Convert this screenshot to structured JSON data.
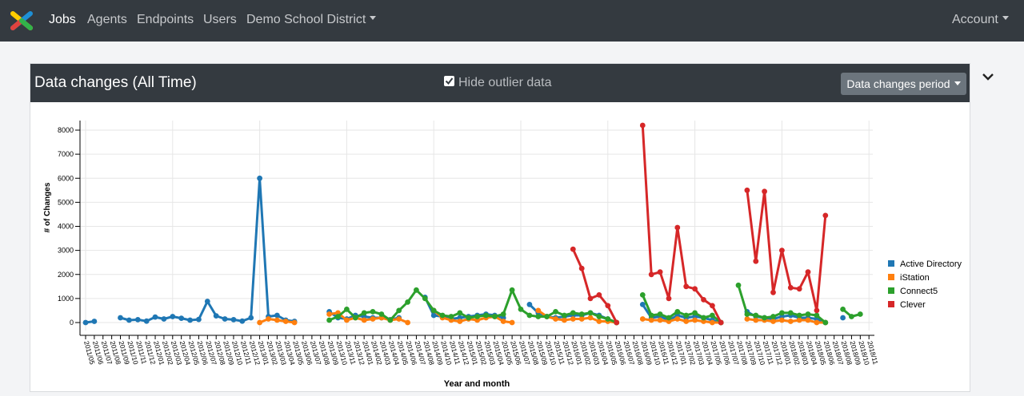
{
  "nav": {
    "jobs": "Jobs",
    "agents": "Agents",
    "endpoints": "Endpoints",
    "users": "Users",
    "district": "Demo School District",
    "account": "Account"
  },
  "card": {
    "title": "Data changes (All Time)",
    "outlier_label": "Hide outlier data",
    "outlier_checked": true,
    "period_button": "Data changes period"
  },
  "colors": {
    "navbar": "#343a40",
    "active_directory": "#1f77b4",
    "istation": "#ff7f0e",
    "connect5": "#2ca02c",
    "clever": "#d62728"
  },
  "icons": {
    "logo": "colored-x-logo",
    "collapse": "chevron-down-icon",
    "checkbox": "check-icon"
  },
  "chart_data": {
    "type": "line",
    "xlabel": "Year and month",
    "ylabel": "# of Changes",
    "ylim": [
      0,
      8000
    ],
    "yticks": [
      0,
      1000,
      2000,
      3000,
      4000,
      5000,
      6000,
      7000,
      8000
    ],
    "grid": true,
    "legend_position": "right",
    "categories": [
      "2011/05",
      "2011/06",
      "2011/07",
      "2011/08",
      "2011/09",
      "2011/10",
      "2011/11",
      "2011/12",
      "2012/01",
      "2012/02",
      "2012/03",
      "2012/04",
      "2012/05",
      "2012/06",
      "2012/07",
      "2012/08",
      "2012/09",
      "2012/10",
      "2012/11",
      "2012/12",
      "2013/01",
      "2013/02",
      "2013/03",
      "2013/04",
      "2013/05",
      "2013/06",
      "2013/07",
      "2013/08",
      "2013/09",
      "2013/10",
      "2013/11",
      "2013/12",
      "2014/01",
      "2014/02",
      "2014/03",
      "2014/04",
      "2014/05",
      "2014/06",
      "2014/07",
      "2014/08",
      "2014/09",
      "2014/10",
      "2014/11",
      "2014/12",
      "2015/01",
      "2015/02",
      "2015/03",
      "2015/04",
      "2015/05",
      "2015/06",
      "2015/07",
      "2015/08",
      "2015/09",
      "2015/10",
      "2015/11",
      "2015/12",
      "2016/01",
      "2016/02",
      "2016/03",
      "2016/04",
      "2016/05",
      "2016/06",
      "2016/07",
      "2016/08",
      "2016/09",
      "2016/10",
      "2016/11",
      "2016/12",
      "2017/01",
      "2017/02",
      "2017/03",
      "2017/04",
      "2017/05",
      "2017/06",
      "2017/07",
      "2017/08",
      "2017/09",
      "2017/10",
      "2017/11",
      "2017/12",
      "2018/01",
      "2018/02",
      "2018/03",
      "2018/04",
      "2018/05",
      "2018/06",
      "2018/07",
      "2018/08",
      "2018/09",
      "2018/10",
      "2018/11"
    ],
    "series": [
      {
        "name": "Active Directory",
        "color": "#1f77b4",
        "values": [
          0,
          50,
          null,
          null,
          200,
          100,
          120,
          60,
          230,
          150,
          250,
          180,
          100,
          130,
          880,
          280,
          150,
          120,
          60,
          200,
          6000,
          250,
          300,
          100,
          50,
          null,
          null,
          null,
          450,
          200,
          150,
          300,
          250,
          200,
          200,
          120,
          200,
          null,
          null,
          1050,
          300,
          250,
          150,
          200,
          250,
          300,
          350,
          300,
          200,
          null,
          null,
          750,
          400,
          250,
          200,
          250,
          300,
          300,
          400,
          300,
          150,
          0,
          null,
          null,
          750,
          200,
          250,
          100,
          300,
          200,
          250,
          200,
          100,
          0,
          null,
          null,
          450,
          250,
          200,
          150,
          250,
          300,
          200,
          200,
          150,
          0,
          null,
          200,
          null,
          null,
          null
        ]
      },
      {
        "name": "iStation",
        "color": "#ff7f0e",
        "values": [
          null,
          null,
          null,
          null,
          null,
          null,
          null,
          null,
          null,
          null,
          null,
          null,
          null,
          null,
          null,
          null,
          null,
          null,
          null,
          null,
          0,
          150,
          100,
          50,
          0,
          null,
          null,
          null,
          350,
          400,
          100,
          200,
          100,
          150,
          200,
          100,
          150,
          0,
          null,
          null,
          500,
          200,
          100,
          50,
          150,
          100,
          200,
          250,
          50,
          0,
          null,
          null,
          500,
          250,
          150,
          100,
          150,
          150,
          200,
          50,
          50,
          0,
          null,
          null,
          150,
          100,
          100,
          50,
          150,
          50,
          100,
          50,
          0,
          0,
          null,
          null,
          150,
          100,
          100,
          50,
          100,
          50,
          100,
          100,
          0,
          0,
          null,
          null,
          null,
          null,
          null
        ]
      },
      {
        "name": "Connect5",
        "color": "#2ca02c",
        "values": [
          null,
          null,
          null,
          null,
          null,
          null,
          null,
          null,
          null,
          null,
          null,
          null,
          null,
          null,
          null,
          null,
          null,
          null,
          null,
          null,
          null,
          null,
          null,
          null,
          null,
          null,
          null,
          null,
          100,
          250,
          550,
          200,
          400,
          450,
          350,
          100,
          500,
          850,
          1350,
          1000,
          500,
          300,
          250,
          400,
          200,
          250,
          300,
          250,
          350,
          1350,
          550,
          300,
          250,
          250,
          450,
          300,
          400,
          350,
          400,
          250,
          150,
          0,
          null,
          null,
          1150,
          300,
          350,
          200,
          450,
          300,
          400,
          200,
          300,
          0,
          null,
          1550,
          350,
          300,
          200,
          250,
          400,
          400,
          300,
          350,
          300,
          0,
          null,
          550,
          250,
          350,
          null
        ]
      },
      {
        "name": "Clever",
        "color": "#d62728",
        "values": [
          null,
          null,
          null,
          null,
          null,
          null,
          null,
          null,
          null,
          null,
          null,
          null,
          null,
          null,
          null,
          null,
          null,
          null,
          null,
          null,
          null,
          null,
          null,
          null,
          null,
          null,
          null,
          null,
          null,
          null,
          null,
          null,
          null,
          null,
          null,
          null,
          null,
          null,
          null,
          null,
          null,
          null,
          null,
          null,
          null,
          null,
          null,
          null,
          null,
          null,
          null,
          null,
          null,
          null,
          null,
          null,
          3050,
          2250,
          1000,
          1150,
          700,
          0,
          null,
          null,
          8200,
          2000,
          2100,
          1000,
          3950,
          1500,
          1400,
          950,
          700,
          0,
          null,
          null,
          5500,
          2550,
          5450,
          1250,
          3000,
          1450,
          1400,
          2100,
          500,
          4450,
          null,
          null,
          null,
          null,
          null
        ]
      }
    ]
  }
}
